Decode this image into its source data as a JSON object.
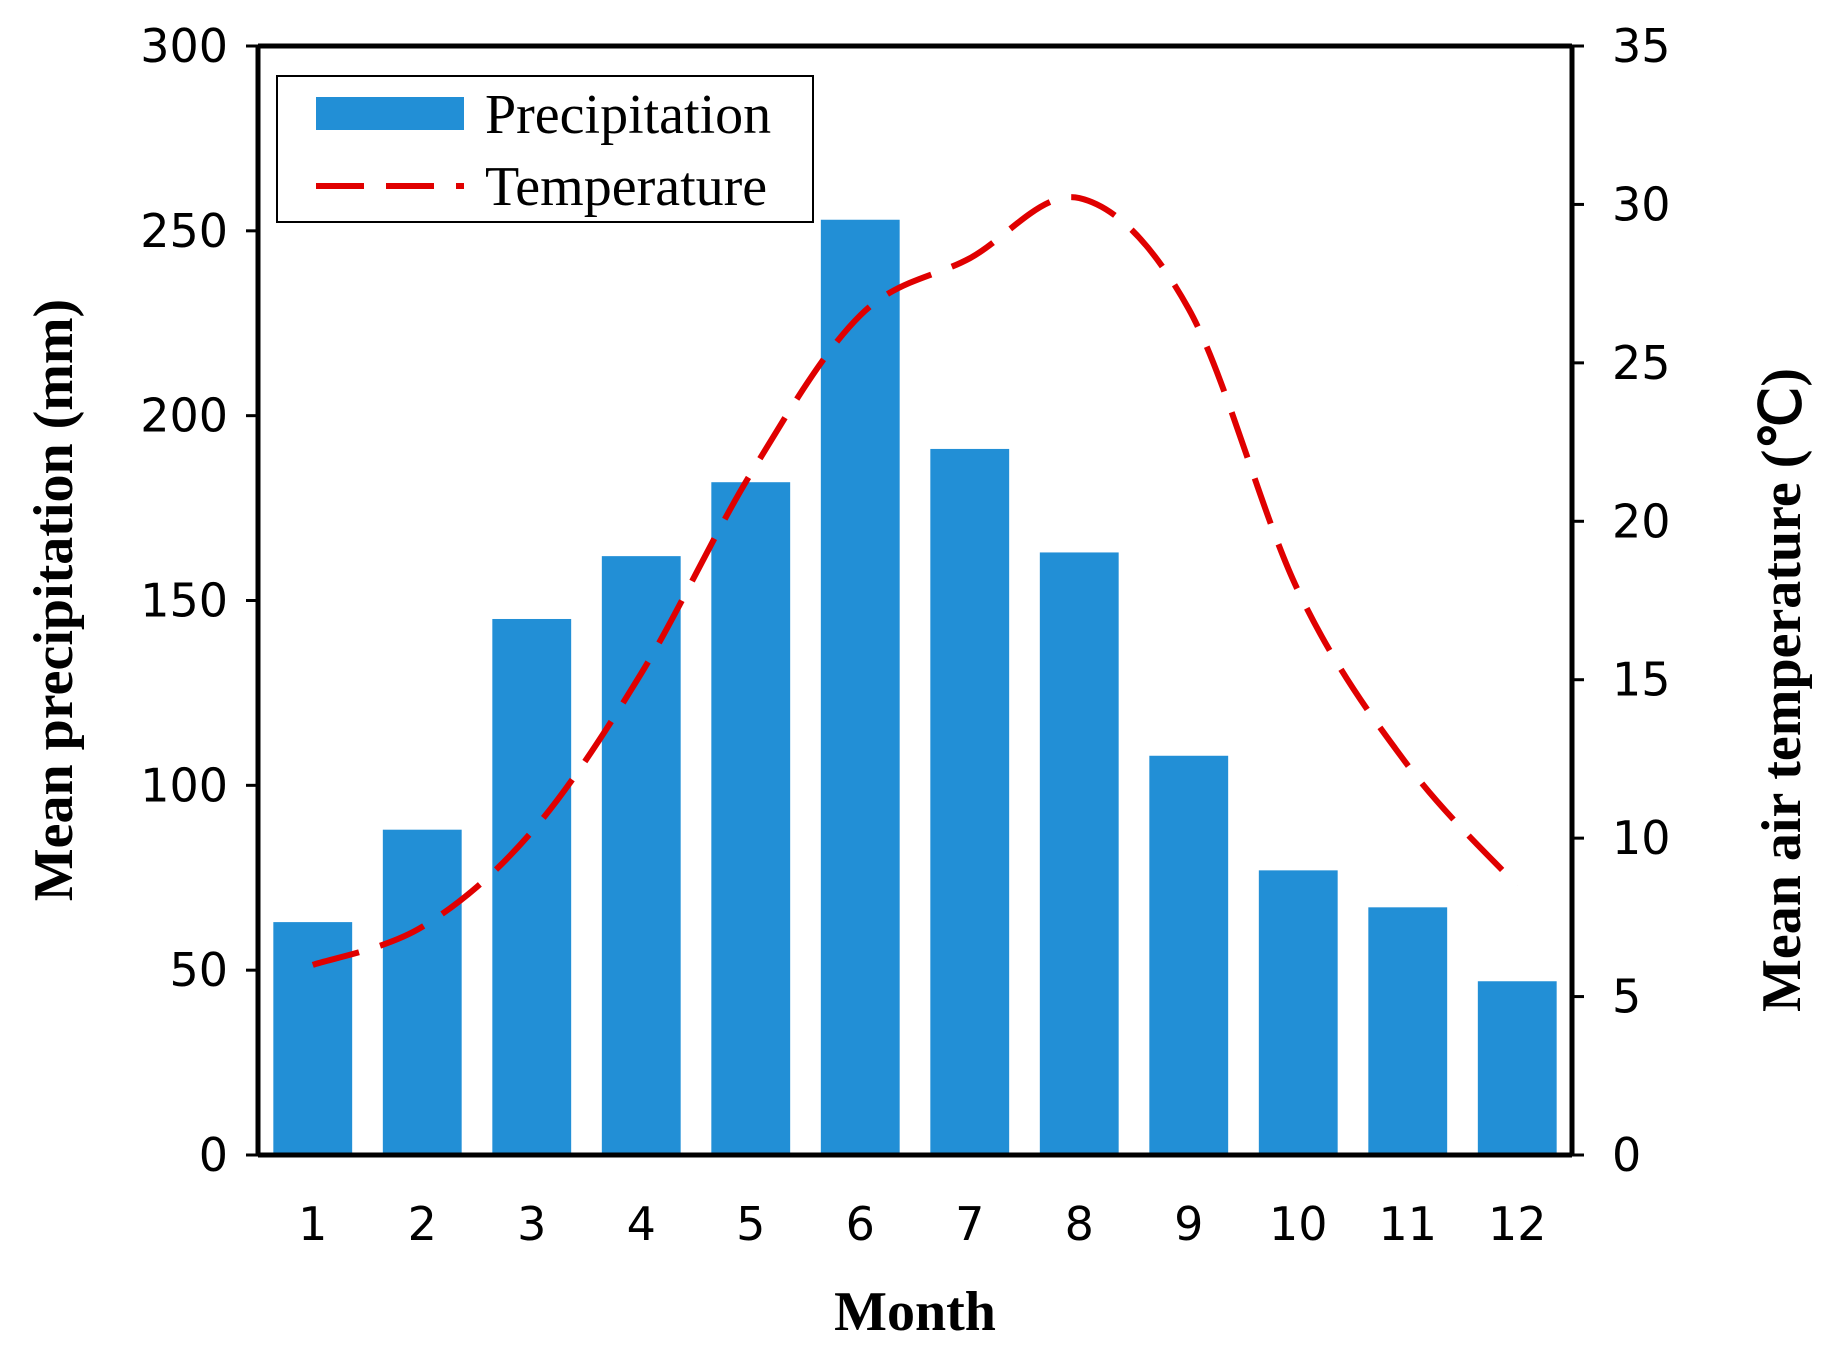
{
  "chart_data": {
    "type": "bar+line",
    "categories": [
      "1",
      "2",
      "3",
      "4",
      "5",
      "6",
      "7",
      "8",
      "9",
      "10",
      "11",
      "12"
    ],
    "series": [
      {
        "name": "Precipitation",
        "type": "bar",
        "axis": "left",
        "color": "#228FD6",
        "values": [
          63,
          88,
          145,
          162,
          182,
          253,
          191,
          163,
          108,
          77,
          67,
          47
        ]
      },
      {
        "name": "Temperature",
        "type": "line",
        "axis": "right",
        "color": "#E00000",
        "style": "dashed",
        "values": [
          6.0,
          7.2,
          10.2,
          15.2,
          21.5,
          26.5,
          28.3,
          30.2,
          26.7,
          17.8,
          12.3,
          8.5
        ]
      }
    ],
    "xlabel": "Month",
    "ylabel_left": "Mean precipitation (mm)",
    "ylabel_right": "Mean air temperature (℃)",
    "ylim_left": [
      0,
      300
    ],
    "ylim_right": [
      0,
      35
    ],
    "yticks_left": [
      "0",
      "50",
      "100",
      "150",
      "200",
      "250",
      "300"
    ],
    "yticks_right": [
      "0",
      "5",
      "10",
      "15",
      "20",
      "25",
      "30",
      "35"
    ],
    "legend": {
      "position": "top-left",
      "entries": [
        "Precipitation",
        "Temperature"
      ]
    },
    "grid": false
  }
}
